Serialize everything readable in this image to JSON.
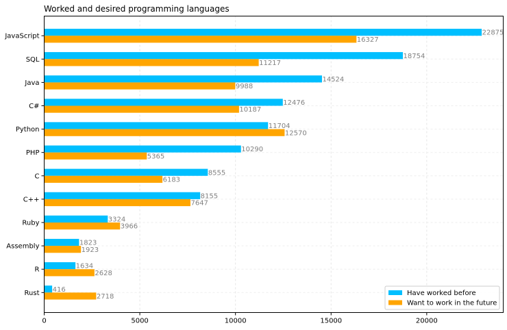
{
  "chart_data": {
    "type": "bar",
    "orientation": "horizontal",
    "title": "Worked and desired programming languages",
    "xlabel": "",
    "ylabel": "",
    "xlim": [
      0,
      24000
    ],
    "xticks": [
      0,
      5000,
      10000,
      15000,
      20000
    ],
    "grid": true,
    "legend_position": "bottom-right",
    "categories": [
      "JavaScript",
      "SQL",
      "Java",
      "C#",
      "Python",
      "PHP",
      "C",
      "C++",
      "Ruby",
      "Assembly",
      "R",
      "Rust"
    ],
    "series": [
      {
        "name": "Have worked before",
        "color": "#00BFFF",
        "values": [
          22875,
          18754,
          14524,
          12476,
          11704,
          10290,
          8555,
          8155,
          3324,
          1823,
          1634,
          416
        ]
      },
      {
        "name": "Want to work in the future",
        "color": "#FFA500",
        "values": [
          16327,
          11217,
          9988,
          10187,
          12570,
          5365,
          6183,
          7647,
          3966,
          1923,
          2628,
          2718
        ]
      }
    ],
    "label_color": "#808080"
  }
}
